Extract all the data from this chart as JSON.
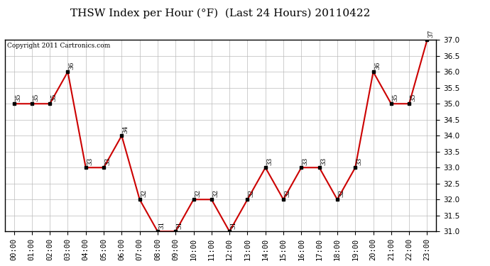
{
  "title": "THSW Index per Hour (°F)  (Last 24 Hours) 20110422",
  "copyright": "Copyright 2011 Cartronics.com",
  "hours": [
    "00:00",
    "01:00",
    "02:00",
    "03:00",
    "04:00",
    "05:00",
    "06:00",
    "07:00",
    "08:00",
    "09:00",
    "10:00",
    "11:00",
    "12:00",
    "13:00",
    "14:00",
    "15:00",
    "16:00",
    "17:00",
    "18:00",
    "19:00",
    "20:00",
    "21:00",
    "22:00",
    "23:00"
  ],
  "values": [
    35,
    35,
    35,
    36,
    33,
    33,
    34,
    32,
    31,
    31,
    32,
    32,
    31,
    32,
    33,
    32,
    33,
    33,
    32,
    33,
    36,
    35,
    35,
    37
  ],
  "ylim": [
    31.0,
    37.0
  ],
  "yticks": [
    31.0,
    31.5,
    32.0,
    32.5,
    33.0,
    33.5,
    34.0,
    34.5,
    35.0,
    35.5,
    36.0,
    36.5,
    37.0
  ],
  "line_color": "#cc0000",
  "marker_color": "#000000",
  "bg_color": "#ffffff",
  "grid_color": "#bbbbbb",
  "title_fontsize": 11,
  "copyright_fontsize": 6.5,
  "tick_fontsize": 7.5,
  "label_fontsize": 6.5
}
